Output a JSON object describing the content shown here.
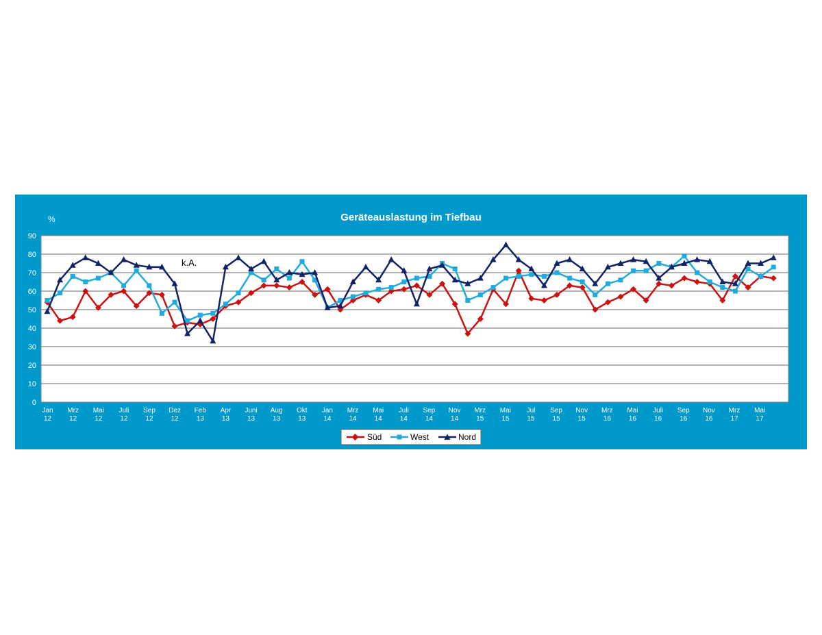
{
  "colors": {
    "frame": "#0099cc",
    "sued": "#cc1111",
    "west": "#22aadd",
    "nord": "#112266"
  },
  "chart_data": {
    "type": "line",
    "title": "Geräteauslastung im Tiefbau",
    "ylabel": "%",
    "ylim": [
      0,
      90
    ],
    "yticks": [
      0,
      10,
      20,
      30,
      40,
      50,
      60,
      70,
      80,
      90
    ],
    "grid": true,
    "legend_position": "bottom",
    "annotation": "k.A.",
    "x_tick_labels": [
      [
        "Jan",
        "12"
      ],
      [
        "Mrz",
        "12"
      ],
      [
        "Mai",
        "12"
      ],
      [
        "Juli",
        "12"
      ],
      [
        "Sep",
        "12"
      ],
      [
        "Dez",
        "12"
      ],
      [
        "Feb",
        "13"
      ],
      [
        "Apr",
        "13"
      ],
      [
        "Juni",
        "13"
      ],
      [
        "Aug",
        "13"
      ],
      [
        "Okt",
        "13"
      ],
      [
        "Jan",
        "14"
      ],
      [
        "Mrz",
        "14"
      ],
      [
        "Mai",
        "14"
      ],
      [
        "Juli",
        "14"
      ],
      [
        "Sep",
        "14"
      ],
      [
        "Nov",
        "14"
      ],
      [
        "Mrz",
        "15"
      ],
      [
        "Mai",
        "15"
      ],
      [
        "Jul",
        "15"
      ],
      [
        "Sep",
        "15"
      ],
      [
        "Nov",
        "15"
      ],
      [
        "Mrz",
        "16"
      ],
      [
        "Mai",
        "16"
      ],
      [
        "Juli",
        "16"
      ],
      [
        "Sep",
        "16"
      ],
      [
        "Nov",
        "16"
      ],
      [
        "Mrz",
        "17"
      ],
      [
        "Mai",
        "17"
      ]
    ],
    "series": [
      {
        "name": "Süd",
        "marker": "diamond",
        "values": [
          54,
          44,
          46,
          60,
          51,
          58,
          60,
          52,
          59,
          58,
          41,
          43,
          42,
          45,
          52,
          54,
          59,
          63,
          63,
          62,
          65,
          58,
          61,
          50,
          55,
          58,
          55,
          60,
          61,
          63,
          58,
          64,
          53,
          37,
          45,
          61,
          53,
          71,
          56,
          55,
          58,
          63,
          62,
          50,
          54,
          57,
          61,
          55,
          64,
          63,
          67,
          65,
          64,
          55,
          68,
          62,
          68,
          67
        ]
      },
      {
        "name": "West",
        "marker": "square",
        "values": [
          55,
          59,
          68,
          65,
          67,
          70,
          63,
          71,
          63,
          48,
          54,
          44,
          47,
          48,
          53,
          59,
          70,
          66,
          72,
          67,
          76,
          66,
          51,
          55,
          57,
          59,
          61,
          62,
          65,
          67,
          68,
          75,
          72,
          55,
          58,
          62,
          67,
          68,
          69,
          68,
          70,
          67,
          65,
          58,
          64,
          66,
          71,
          71,
          75,
          73,
          79,
          70,
          65,
          62,
          60,
          72,
          68,
          73
        ]
      },
      {
        "name": "Nord",
        "marker": "triangle",
        "values": [
          49,
          66,
          74,
          78,
          75,
          70,
          77,
          74,
          73,
          73,
          64,
          37,
          44,
          33,
          73,
          78,
          72,
          76,
          66,
          70,
          69,
          70,
          51,
          52,
          65,
          73,
          66,
          77,
          71,
          53,
          72,
          74,
          66,
          64,
          67,
          77,
          85,
          77,
          72,
          63,
          75,
          77,
          72,
          64,
          73,
          75,
          77,
          76,
          67,
          73,
          75,
          77,
          76,
          65,
          64,
          75,
          75,
          78
        ]
      }
    ]
  }
}
